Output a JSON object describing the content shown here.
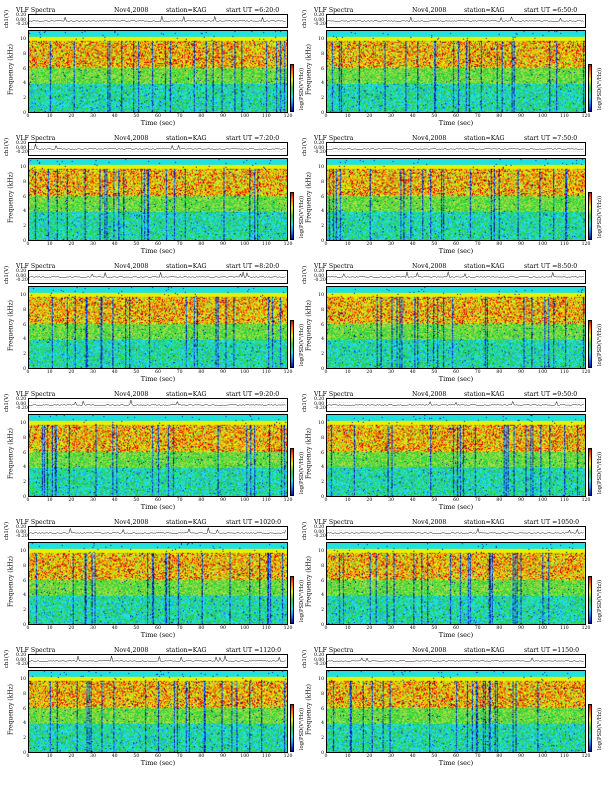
{
  "header": {
    "title": "VLF Spectra",
    "date": "Nov4,2008",
    "station": "station=KAG",
    "start_prefix": "start UT ="
  },
  "axis": {
    "ch_label": "ch1(V)",
    "ch_ticks": [
      "0.20",
      "0.00",
      "-0.20"
    ],
    "freq_label": "Frequency (kHz)",
    "freq_ticks": [
      "10",
      "8",
      "6",
      "4",
      "2",
      "0"
    ],
    "time_label": "Time (sec)",
    "time_ticks": [
      "0",
      "10",
      "20",
      "30",
      "40",
      "50",
      "60",
      "70",
      "80",
      "90",
      "100",
      "110",
      "120"
    ],
    "colorbar_label": "log(PSD(V²/Hz))"
  },
  "panels": [
    {
      "start": "6:20:0"
    },
    {
      "start": "6:50:0"
    },
    {
      "start": "7:20:0"
    },
    {
      "start": "7:50:0"
    },
    {
      "start": "8:20:0"
    },
    {
      "start": "8:50:0"
    },
    {
      "start": "9:20:0"
    },
    {
      "start": "9:50:0"
    },
    {
      "start": "1020:0"
    },
    {
      "start": "1050:0"
    },
    {
      "start": "1120:0"
    },
    {
      "start": "1150:0"
    }
  ],
  "chart_data": {
    "type": "heatmap",
    "title": "VLF Spectra",
    "xlabel": "Time (sec)",
    "ylabel": "Frequency (kHz)",
    "xlim": [
      0,
      120
    ],
    "ylim": [
      0,
      10
    ],
    "colorbar_label": "log(PSD(V²/Hz))",
    "panels": 12,
    "colors": {
      "low": "#0010a0",
      "mid_low": "#20e0e0",
      "mid": "#30d040",
      "mid_high": "#e8f000",
      "high": "#e00000"
    }
  }
}
